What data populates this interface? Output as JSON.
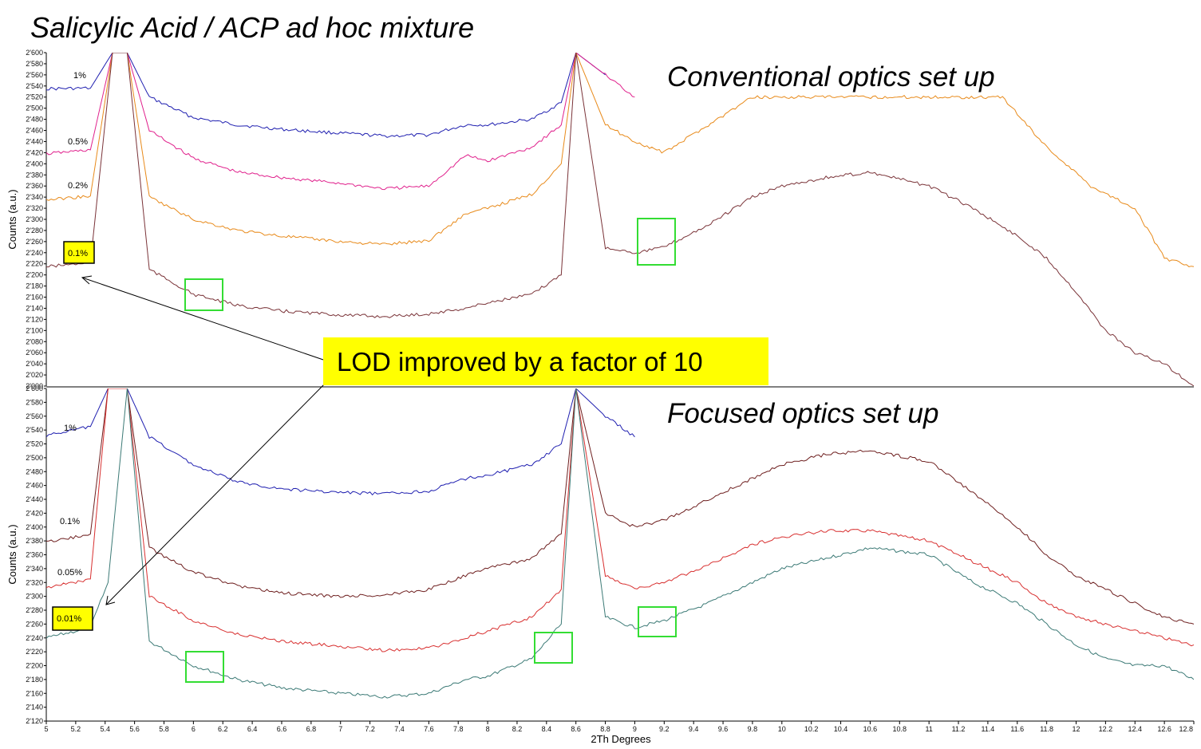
{
  "title": "Salicylic Acid / ACP ad hoc mixture",
  "callout": {
    "text": "LOD improved by a factor of 10",
    "color": "#ffff00"
  },
  "colors": {
    "highlight_box": "#00dd00",
    "label_highlight": "#ffff00"
  },
  "chart_data": [
    {
      "type": "line",
      "title": "Conventional optics set up",
      "ylabel": "Counts (a.u.)",
      "xlabel": "",
      "xlim": [
        5,
        12.8
      ],
      "ylim": [
        2000,
        2600
      ],
      "yticks": [
        "2'000",
        "2'020",
        "2'040",
        "2'060",
        "2'080",
        "2'100",
        "2'120",
        "2'140",
        "2'160",
        "2'180",
        "2'200",
        "2'220",
        "2'240",
        "2'260",
        "2'280",
        "2'300",
        "2'320",
        "2'340",
        "2'360",
        "2'380",
        "2'400",
        "2'420",
        "2'440",
        "2'460",
        "2'480",
        "2'500",
        "2'520",
        "2'540",
        "2'560",
        "2'580",
        "2'600"
      ],
      "highlighted_label": "0.1%",
      "series": [
        {
          "name": "1%",
          "color": "#1f1fb0",
          "x": [
            5.0,
            5.3,
            5.45,
            5.55,
            5.7,
            6.0,
            6.3,
            6.6,
            7.0,
            7.3,
            7.6,
            7.85,
            8.0,
            8.3,
            8.5,
            8.6,
            8.8
          ],
          "y": [
            2535,
            2536,
            2600,
            2600,
            2520,
            2483,
            2470,
            2462,
            2455,
            2450,
            2452,
            2470,
            2470,
            2480,
            2510,
            2600,
            2560
          ]
        },
        {
          "name": "0.5%",
          "color": "#e0208c",
          "x": [
            5.0,
            5.3,
            5.45,
            5.55,
            5.7,
            6.0,
            6.3,
            6.6,
            7.0,
            7.3,
            7.6,
            7.85,
            8.0,
            8.3,
            8.5,
            8.6,
            8.8,
            9.0
          ],
          "y": [
            2418,
            2425,
            2600,
            2600,
            2460,
            2410,
            2385,
            2375,
            2365,
            2355,
            2360,
            2415,
            2405,
            2430,
            2470,
            2600,
            2560,
            2520
          ]
        },
        {
          "name": "0.2%",
          "color": "#e88a1a",
          "x": [
            5.0,
            5.3,
            5.45,
            5.55,
            5.7,
            6.0,
            6.3,
            6.6,
            7.0,
            7.3,
            7.6,
            7.85,
            8.0,
            8.3,
            8.5,
            8.6,
            8.8,
            9.0,
            9.2,
            9.5,
            9.8,
            10.0,
            11.5,
            11.8,
            12.1,
            12.4,
            12.6,
            12.8
          ],
          "y": [
            2335,
            2342,
            2600,
            2600,
            2340,
            2300,
            2280,
            2270,
            2260,
            2255,
            2262,
            2310,
            2320,
            2345,
            2400,
            2600,
            2470,
            2440,
            2420,
            2470,
            2520,
            2520,
            2520,
            2430,
            2360,
            2320,
            2230,
            2215
          ]
        },
        {
          "name": "0.1%",
          "color": "#7a3338",
          "x": [
            5.0,
            5.3,
            5.45,
            5.55,
            5.7,
            6.0,
            6.3,
            6.6,
            7.0,
            7.3,
            7.6,
            7.85,
            8.0,
            8.3,
            8.5,
            8.6,
            8.8,
            9.0,
            9.2,
            9.5,
            9.8,
            10.0,
            10.3,
            10.6,
            11.0,
            11.3,
            11.6,
            11.8,
            12.0,
            12.2,
            12.4,
            12.6,
            12.8
          ],
          "y": [
            2215,
            2222,
            2600,
            2600,
            2210,
            2165,
            2145,
            2135,
            2128,
            2125,
            2130,
            2140,
            2150,
            2165,
            2200,
            2600,
            2250,
            2240,
            2250,
            2290,
            2340,
            2360,
            2375,
            2385,
            2360,
            2320,
            2270,
            2230,
            2170,
            2100,
            2060,
            2040,
            2000
          ]
        }
      ]
    },
    {
      "type": "line",
      "title": "Focused optics set up",
      "ylabel": "Counts (a.u.)",
      "xlabel": "2Th Degrees",
      "xlim": [
        5,
        12.8
      ],
      "ylim": [
        2120,
        2600
      ],
      "xticks": [
        "5",
        "5.2",
        "5.4",
        "5.6",
        "5.8",
        "6",
        "6.2",
        "6.4",
        "6.6",
        "6.8",
        "7",
        "7.2",
        "7.4",
        "7.6",
        "7.8",
        "8",
        "8.2",
        "8.4",
        "8.6",
        "8.8",
        "9",
        "9.2",
        "9.4",
        "9.6",
        "9.8",
        "10",
        "10.2",
        "10.4",
        "10.6",
        "10.8",
        "11",
        "11.2",
        "11.4",
        "11.6",
        "11.8",
        "12",
        "12.2",
        "12.4",
        "12.6",
        "12.8"
      ],
      "yticks": [
        "2'120",
        "2'140",
        "2'160",
        "2'180",
        "2'200",
        "2'220",
        "2'240",
        "2'260",
        "2'280",
        "2'300",
        "2'320",
        "2'340",
        "2'360",
        "2'380",
        "2'400",
        "2'420",
        "2'440",
        "2'460",
        "2'480",
        "2'500",
        "2'520",
        "2'540",
        "2'560",
        "2'580",
        "2'600"
      ],
      "highlighted_label": "0.01%",
      "series": [
        {
          "name": "1%",
          "color": "#1f1fb0",
          "x": [
            5.0,
            5.3,
            5.42,
            5.55,
            5.7,
            6.0,
            6.3,
            6.6,
            7.0,
            7.3,
            7.6,
            7.85,
            8.0,
            8.3,
            8.5,
            8.6,
            8.8,
            9.0
          ],
          "y": [
            2532,
            2545,
            2600,
            2600,
            2530,
            2490,
            2465,
            2455,
            2450,
            2448,
            2452,
            2470,
            2475,
            2490,
            2520,
            2600,
            2560,
            2530
          ]
        },
        {
          "name": "0.1%",
          "color": "#6e1f1f",
          "x": [
            5.0,
            5.3,
            5.42,
            5.55,
            5.7,
            6.0,
            6.3,
            6.6,
            7.0,
            7.3,
            7.6,
            7.85,
            8.0,
            8.3,
            8.5,
            8.6,
            8.8,
            9.0,
            9.2,
            9.5,
            9.8,
            10.0,
            10.3,
            10.6,
            11.0,
            11.3,
            11.6,
            11.8,
            12.0,
            12.2,
            12.4,
            12.6,
            12.8
          ],
          "y": [
            2378,
            2390,
            2600,
            2600,
            2370,
            2335,
            2315,
            2305,
            2300,
            2302,
            2310,
            2330,
            2340,
            2355,
            2390,
            2600,
            2420,
            2400,
            2410,
            2440,
            2470,
            2490,
            2505,
            2510,
            2495,
            2450,
            2400,
            2360,
            2330,
            2310,
            2290,
            2270,
            2260
          ]
        },
        {
          "name": "0.05%",
          "color": "#d83030",
          "x": [
            5.0,
            5.3,
            5.42,
            5.55,
            5.7,
            6.0,
            6.3,
            6.6,
            7.0,
            7.3,
            7.6,
            7.85,
            8.0,
            8.3,
            8.5,
            8.6,
            8.8,
            9.0,
            9.2,
            9.5,
            9.8,
            10.0,
            10.3,
            10.6,
            11.0,
            11.3,
            11.6,
            11.8,
            12.0,
            12.2,
            12.4,
            12.6,
            12.8
          ],
          "y": [
            2312,
            2325,
            2600,
            2600,
            2300,
            2265,
            2245,
            2235,
            2228,
            2222,
            2225,
            2240,
            2250,
            2270,
            2310,
            2600,
            2330,
            2310,
            2320,
            2345,
            2375,
            2385,
            2395,
            2395,
            2380,
            2350,
            2320,
            2290,
            2270,
            2260,
            2250,
            2240,
            2230
          ]
        },
        {
          "name": "0.01%",
          "color": "#3c7a76",
          "x": [
            5.0,
            5.3,
            5.42,
            5.55,
            5.7,
            6.0,
            6.3,
            6.6,
            7.0,
            7.3,
            7.6,
            7.85,
            8.0,
            8.3,
            8.5,
            8.6,
            8.8,
            9.0,
            9.2,
            9.5,
            9.8,
            10.0,
            10.3,
            10.6,
            11.0,
            11.3,
            11.6,
            11.8,
            12.0,
            12.2,
            12.4,
            12.6,
            12.8
          ],
          "y": [
            2240,
            2255,
            2320,
            2600,
            2235,
            2200,
            2180,
            2168,
            2160,
            2155,
            2160,
            2180,
            2185,
            2210,
            2260,
            2600,
            2270,
            2255,
            2265,
            2290,
            2320,
            2340,
            2355,
            2370,
            2360,
            2320,
            2290,
            2260,
            2230,
            2210,
            2200,
            2200,
            2180
          ]
        }
      ]
    }
  ]
}
